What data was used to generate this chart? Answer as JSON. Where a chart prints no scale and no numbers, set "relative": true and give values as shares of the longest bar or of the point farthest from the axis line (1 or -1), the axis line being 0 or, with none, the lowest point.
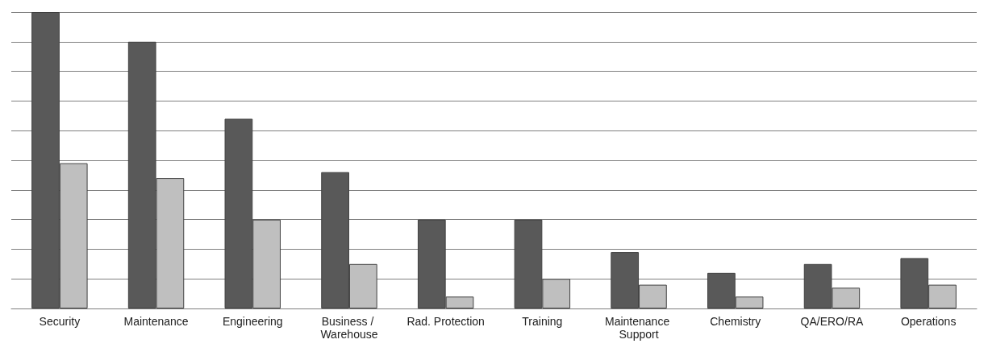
{
  "chart_data": {
    "type": "bar",
    "relative": true,
    "grid": "y",
    "categories": [
      "Security",
      "Maintenance",
      "Engineering",
      "Business / Warehouse",
      "Rad. Protection",
      "Training",
      "Maintenance Support",
      "Chemistry",
      "QA/ERO/RA",
      "Operations"
    ],
    "series": [
      {
        "color": "#595959",
        "values": [
          1,
          0.9,
          0.64,
          0.46,
          0.3,
          0.3,
          0.19,
          0.12,
          0.15,
          0.17
        ]
      },
      {
        "color": "#bfbfbf",
        "values": [
          0.49,
          0.44,
          0.3,
          0.15,
          0.04,
          0.1,
          0.08,
          0.04,
          0.07,
          0.08
        ]
      }
    ]
  }
}
